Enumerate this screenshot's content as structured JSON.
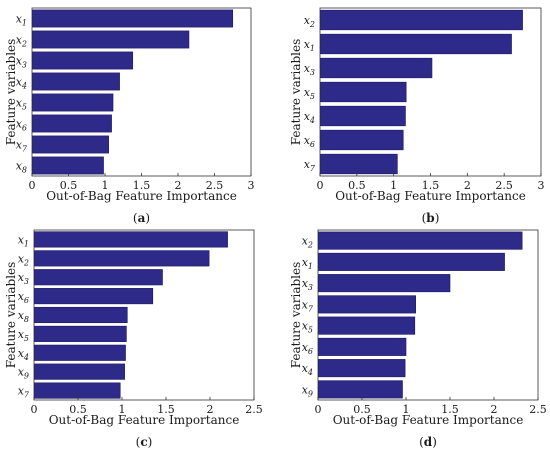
{
  "chart_data": [
    {
      "type": "bar",
      "orientation": "horizontal",
      "panel_label": "(a)",
      "panel_letter": "a",
      "xlabel": "Out-of-Bag Feature Importance",
      "ylabel": "Feature variables",
      "xlim": [
        0,
        3
      ],
      "xticks": [
        "0",
        "0.5",
        "1",
        "1.5",
        "2",
        "2.5",
        "3"
      ],
      "bar_color": "#2e2a8a",
      "categories": [
        {
          "base": "x",
          "sub": "1"
        },
        {
          "base": "x",
          "sub": "2"
        },
        {
          "base": "x",
          "sub": "3"
        },
        {
          "base": "x",
          "sub": "4"
        },
        {
          "base": "x",
          "sub": "5"
        },
        {
          "base": "x",
          "sub": "6"
        },
        {
          "base": "x",
          "sub": "7"
        },
        {
          "base": "x",
          "sub": "8"
        }
      ],
      "values": [
        2.75,
        2.15,
        1.38,
        1.2,
        1.11,
        1.09,
        1.05,
        0.98
      ]
    },
    {
      "type": "bar",
      "orientation": "horizontal",
      "panel_label": "(b)",
      "panel_letter": "b",
      "xlabel": "Out-of-Bag Feature Importance",
      "ylabel": "Feature variables",
      "xlim": [
        0,
        3
      ],
      "xticks": [
        "0",
        "0.5",
        "1",
        "1.5",
        "2",
        "2.5",
        "3"
      ],
      "bar_color": "#2e2a8a",
      "categories": [
        {
          "base": "x",
          "sub": "2"
        },
        {
          "base": "x",
          "sub": "1"
        },
        {
          "base": "x",
          "sub": "3"
        },
        {
          "base": "x",
          "sub": "5"
        },
        {
          "base": "x",
          "sub": "4"
        },
        {
          "base": "x",
          "sub": "6"
        },
        {
          "base": "x",
          "sub": "7"
        }
      ],
      "values": [
        2.75,
        2.6,
        1.52,
        1.17,
        1.16,
        1.13,
        1.05
      ]
    },
    {
      "type": "bar",
      "orientation": "horizontal",
      "panel_label": "(c)",
      "panel_letter": "c",
      "xlabel": "Out-of-Bag Feature Importance",
      "ylabel": "Feature variables",
      "xlim": [
        0,
        2.5
      ],
      "xticks": [
        "0",
        "0.5",
        "1",
        "1.5",
        "2",
        "2.5"
      ],
      "bar_color": "#2e2a8a",
      "categories": [
        {
          "base": "x",
          "sub": "1"
        },
        {
          "base": "x",
          "sub": "2"
        },
        {
          "base": "x",
          "sub": "3"
        },
        {
          "base": "x",
          "sub": "6"
        },
        {
          "base": "x",
          "sub": "8"
        },
        {
          "base": "x",
          "sub": "5"
        },
        {
          "base": "x",
          "sub": "4"
        },
        {
          "base": "x",
          "sub": "9"
        },
        {
          "base": "x",
          "sub": "7"
        }
      ],
      "values": [
        2.2,
        1.99,
        1.46,
        1.35,
        1.06,
        1.05,
        1.04,
        1.03,
        0.98
      ]
    },
    {
      "type": "bar",
      "orientation": "horizontal",
      "panel_label": "(d)",
      "panel_letter": "d",
      "xlabel": "Out-of-Bag Feature Importance",
      "ylabel": "Feature variables",
      "xlim": [
        0,
        2.5
      ],
      "xticks": [
        "0",
        "0.5",
        "1",
        "1.5",
        "2",
        "2.5"
      ],
      "bar_color": "#2e2a8a",
      "categories": [
        {
          "base": "x",
          "sub": "2"
        },
        {
          "base": "x",
          "sub": "1"
        },
        {
          "base": "x",
          "sub": "3"
        },
        {
          "base": "x",
          "sub": "7"
        },
        {
          "base": "x",
          "sub": "5"
        },
        {
          "base": "x",
          "sub": "6"
        },
        {
          "base": "x",
          "sub": "4"
        },
        {
          "base": "x",
          "sub": "9"
        }
      ],
      "values": [
        2.32,
        2.12,
        1.5,
        1.11,
        1.1,
        1.0,
        0.99,
        0.96
      ]
    }
  ]
}
